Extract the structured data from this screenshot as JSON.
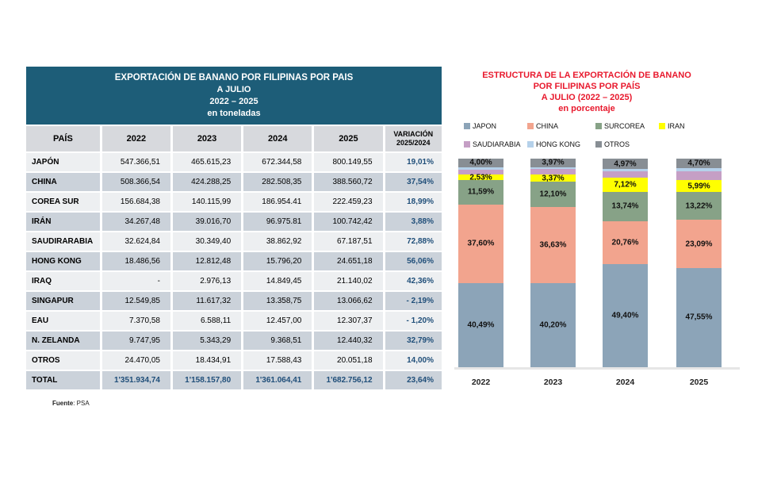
{
  "table": {
    "title_lines": [
      "EXPORTACIÓN DE BANANO POR FILIPINAS POR PAIS",
      "A JULIO",
      "2022 – 2025",
      "en toneladas"
    ],
    "columns": [
      "PAÍS",
      "2022",
      "2023",
      "2024",
      "2025"
    ],
    "variation_header_line1": "VARIACIÓN",
    "variation_header_line2": "2025/2024",
    "rows": [
      {
        "pais": "JAPÓN",
        "values": [
          "547.366,51",
          "465.615,23",
          "672.344,58",
          "800.149,55"
        ],
        "variacion": "19,01%"
      },
      {
        "pais": "CHINA",
        "values": [
          "508.366,54",
          "424.288,25",
          "282.508,35",
          "388.560,72"
        ],
        "variacion": "37,54%"
      },
      {
        "pais": "COREA SUR",
        "values": [
          "156.684,38",
          "140.115,99",
          "186.954.41",
          "222.459,23"
        ],
        "variacion": "18,99%"
      },
      {
        "pais": "IRÁN",
        "values": [
          "34.267,48",
          "39.016,70",
          "96.975.81",
          "100.742,42"
        ],
        "variacion": "3,88%"
      },
      {
        "pais": "SAUDIRARABIA",
        "values": [
          "32.624,84",
          "30.349,40",
          "38.862,92",
          "67.187,51"
        ],
        "variacion": "72,88%"
      },
      {
        "pais": "HONG KONG",
        "values": [
          "18.486,56",
          "12.812,48",
          "15.796,20",
          "24.651,18"
        ],
        "variacion": "56,06%"
      },
      {
        "pais": "IRAQ",
        "values": [
          "-",
          "2.976,13",
          "14.849,45",
          "21.140,02"
        ],
        "variacion": "42,36%"
      },
      {
        "pais": "SINGAPUR",
        "values": [
          "12.549,85",
          "11.617,32",
          "13.358,75",
          "13.066,62"
        ],
        "variacion": "- 2,19%"
      },
      {
        "pais": "EAU",
        "values": [
          "7.370,58",
          "6.588,11",
          "12.457,00",
          "12.307,37"
        ],
        "variacion": "- 1,20%"
      },
      {
        "pais": "N. ZELANDA",
        "values": [
          "9.747,95",
          "5.343,29",
          "9.368,51",
          "12.440,32"
        ],
        "variacion": "32,79%"
      },
      {
        "pais": "OTROS",
        "values": [
          "24.470,05",
          "18.434,91",
          "17.588,43",
          "20.051,18"
        ],
        "variacion": "14,00%"
      }
    ],
    "total_row": {
      "pais": "TOTAL",
      "values": [
        "1'351.934,74",
        "1'158.157,80",
        "1'361.064,41",
        "1'682.756,12"
      ],
      "variacion": "23,64%"
    },
    "source_label": "Fuente",
    "source_value": ": PSA"
  },
  "chart": {
    "title_lines": [
      "ESTRUCTURA DE LA EXPORTACIÓN DE BANANO",
      "POR FILIPINAS POR PAÍS",
      "A JULIO (2022 – 2025)",
      "en porcentaje"
    ],
    "title_color": "#e8192d"
  },
  "chart_data": {
    "type": "bar",
    "subtype": "stacked-100-percent",
    "title": "ESTRUCTURA DE LA EXPORTACIÓN DE BANANO POR FILIPINAS POR PAÍS A JULIO (2022 – 2025) en porcentaje",
    "categories": [
      "2022",
      "2023",
      "2024",
      "2025"
    ],
    "series": [
      {
        "name": "JAPON",
        "color": "#8ca4b8",
        "values": [
          40.49,
          40.2,
          49.4,
          47.55
        ],
        "labels": [
          "40,49%",
          "40,20%",
          "49,40%",
          "47,55%"
        ]
      },
      {
        "name": "CHINA",
        "color": "#f2a48e",
        "values": [
          37.6,
          36.63,
          20.76,
          23.09
        ],
        "labels": [
          "37,60%",
          "36,63%",
          "20,76%",
          "23,09%"
        ]
      },
      {
        "name": "SURCOREA",
        "color": "#87a287",
        "values": [
          11.59,
          12.1,
          13.74,
          13.22
        ],
        "labels": [
          "11,59%",
          "12,10%",
          "13,74%",
          "13,22%"
        ]
      },
      {
        "name": "IRAN",
        "color": "#ffff00",
        "values": [
          2.53,
          3.37,
          7.12,
          5.99
        ],
        "labels": [
          "2,53%",
          "3,37%",
          "7,12%",
          "5,99%"
        ]
      },
      {
        "name": "SAUDIARABIA",
        "color": "#c59fc5",
        "values": [
          2.41,
          2.62,
          2.85,
          3.99
        ],
        "labels": [
          null,
          null,
          null,
          null
        ]
      },
      {
        "name": "HONG KONG",
        "color": "#b5d1ea",
        "values": [
          1.38,
          1.11,
          1.16,
          1.46
        ],
        "labels": [
          null,
          null,
          null,
          null
        ]
      },
      {
        "name": "OTROS",
        "color": "#888e94",
        "values": [
          4.0,
          3.97,
          4.97,
          4.7
        ],
        "labels": [
          "4,00%",
          "3,97%",
          "4,97%",
          "4,70%"
        ]
      }
    ],
    "stack_order_bottom_to_top": [
      "JAPON",
      "CHINA",
      "SURCOREA",
      "IRAN",
      "SAUDIARABIA",
      "HONG KONG",
      "OTROS"
    ],
    "ylim": [
      0,
      100
    ],
    "grid": false,
    "y_axis_visible": false,
    "legend_position": "top",
    "note": "Unlabeled SAUDIARABIA and HONG KONG segment values estimated from bar heights"
  },
  "colors": {
    "table_header_bg": "#1d5d78",
    "table_header_text": "#ffffff",
    "column_header_bg": "#d7d9dd",
    "row_light": "#edeff1",
    "row_dark": "#cbd2da",
    "accent_blue": "#1f4e79",
    "chart_title_red": "#e8192d"
  }
}
